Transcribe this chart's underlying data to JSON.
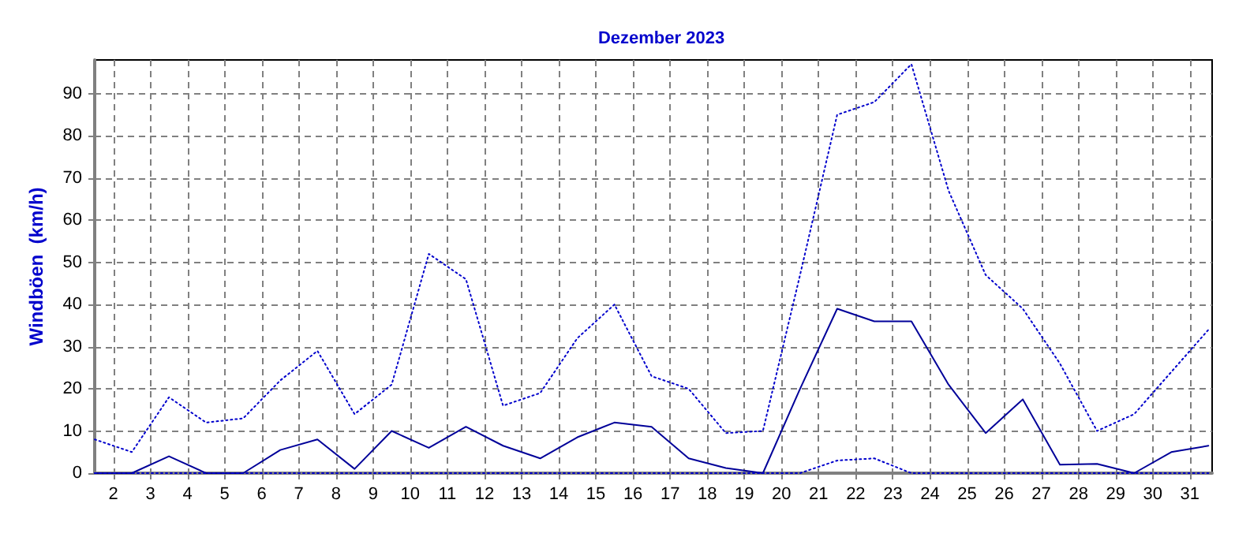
{
  "chart_data": {
    "type": "line",
    "title": "Dezember 2023",
    "ylabel": "Windböen  (km/h)",
    "xlim": [
      1.5,
      31.6
    ],
    "xticks": [
      2,
      3,
      4,
      5,
      6,
      7,
      8,
      9,
      10,
      11,
      12,
      13,
      14,
      15,
      16,
      17,
      18,
      19,
      20,
      21,
      22,
      23,
      24,
      25,
      26,
      27,
      28,
      29,
      30,
      31
    ],
    "ylim": [
      0,
      98
    ],
    "yticks": [
      0,
      10,
      20,
      30,
      40,
      50,
      60,
      70,
      80,
      90
    ],
    "grid": true,
    "marker": "none",
    "x": [
      1.5,
      2.5,
      3.5,
      4.5,
      5.5,
      6.5,
      7.5,
      8.5,
      9.5,
      10.5,
      11.5,
      12.5,
      13.5,
      14.5,
      15.5,
      16.5,
      17.5,
      18.5,
      19.5,
      20.5,
      21.5,
      22.5,
      23.5,
      24.5,
      25.5,
      26.5,
      27.5,
      28.5,
      29.5,
      30.5,
      31.5
    ],
    "series": [
      {
        "color": "#0000cc",
        "line_style": "dotted",
        "values": [
          8,
          5,
          18,
          12,
          13,
          22,
          29,
          14,
          21,
          52,
          46,
          16,
          19,
          32,
          40,
          23,
          20,
          9.5,
          10,
          47,
          85,
          88,
          97,
          67,
          47,
          39,
          26,
          10,
          14,
          24,
          34
        ]
      },
      {
        "color": "#000099",
        "line_style": "solid",
        "values": [
          0,
          0,
          4,
          0,
          0,
          5.5,
          8,
          1,
          10,
          6,
          11,
          6.5,
          3.5,
          8.5,
          12,
          11,
          3.5,
          1.2,
          0,
          20,
          39,
          36,
          36,
          21,
          9.5,
          17.5,
          2,
          2.2,
          0,
          5,
          6.5
        ]
      },
      {
        "color": "#0000cc",
        "line_style": "dotted",
        "values": [
          0,
          0,
          0,
          0,
          0,
          0,
          0,
          0,
          0,
          0,
          0,
          0,
          0,
          0,
          0,
          0,
          0,
          0,
          0,
          0,
          3,
          3.5,
          0,
          0,
          0,
          0,
          0,
          0,
          0,
          0,
          0
        ]
      }
    ]
  }
}
